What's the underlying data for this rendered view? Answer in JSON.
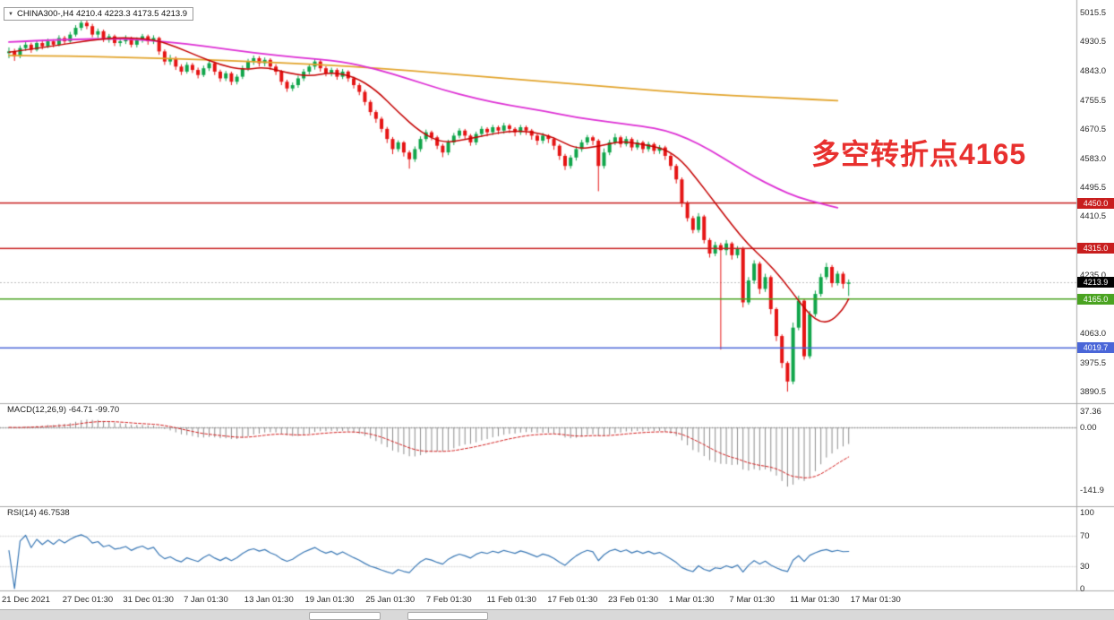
{
  "symbol_header": {
    "dropdown_icon": "▼",
    "text": "CHINA300-,H4 4210.4 4223.3 4173.5 4213.9"
  },
  "annotation": {
    "text": "多空转折点4165",
    "color": "#e8302e"
  },
  "chart_data": {
    "type": "candlestick",
    "title": "CHINA300-,H4",
    "symbol": "CHINA300-",
    "timeframe": "H4",
    "ohlc_display": {
      "open": "4210.4",
      "high": "4223.3",
      "low": "4173.5",
      "close": "4213.9"
    },
    "colors": {
      "up": "#10a54a",
      "down": "#e51414",
      "ma_fast": "#c40000",
      "ma_mid": "#dd2fd4",
      "ma_slow": "#e2a42c",
      "macd_histogram": "#8c8c8c",
      "macd_signal": "#d22020",
      "rsi_line": "#3a78b5"
    },
    "y_axis": {
      "ticks": [
        "5015.5",
        "4930.5",
        "4843.0",
        "4755.5",
        "4670.5",
        "4583.0",
        "4495.5",
        "4410.5",
        "4323.0",
        "4235.0",
        "4148.0",
        "4063.0",
        "3975.5",
        "3890.5"
      ]
    },
    "x_labels": [
      "21 Dec 2021",
      "27 Dec 01:30",
      "31 Dec 01:30",
      "7 Jan 01:30",
      "13 Jan 01:30",
      "19 Jan 01:30",
      "25 Jan 01:30",
      "7 Feb 01:30",
      "11 Feb 01:30",
      "17 Feb 01:30",
      "23 Feb 01:30",
      "1 Mar 01:30",
      "7 Mar 01:30",
      "11 Mar 01:30",
      "17 Mar 01:30"
    ],
    "levels": [
      {
        "label": "4450.0",
        "value": 4450.0,
        "color": "#c81e1e",
        "style": "solid"
      },
      {
        "label": "4315.0",
        "value": 4315.0,
        "color": "#c81e1e",
        "style": "solid"
      },
      {
        "label": "4213.9",
        "value": 4213.9,
        "color": "#000000",
        "style": "current"
      },
      {
        "label": "4165.0",
        "value": 4165.0,
        "color": "#4aa321",
        "style": "solid"
      },
      {
        "label": "4019.7",
        "value": 4019.7,
        "color": "#4a66d8",
        "style": "solid"
      }
    ],
    "candles": [
      [
        4895,
        4912,
        4880,
        4900
      ],
      [
        4900,
        4908,
        4872,
        4885
      ],
      [
        4885,
        4918,
        4880,
        4910
      ],
      [
        4910,
        4928,
        4902,
        4920
      ],
      [
        4920,
        4926,
        4896,
        4905
      ],
      [
        4905,
        4932,
        4900,
        4925
      ],
      [
        4925,
        4934,
        4906,
        4915
      ],
      [
        4915,
        4938,
        4910,
        4930
      ],
      [
        4930,
        4936,
        4912,
        4920
      ],
      [
        4920,
        4948,
        4915,
        4940
      ],
      [
        4940,
        4946,
        4922,
        4930
      ],
      [
        4930,
        4958,
        4926,
        4950
      ],
      [
        4950,
        4978,
        4944,
        4970
      ],
      [
        4970,
        4992,
        4962,
        4985
      ],
      [
        4985,
        4995,
        4966,
        4975
      ],
      [
        4975,
        4982,
        4942,
        4950
      ],
      [
        4950,
        4968,
        4940,
        4960
      ],
      [
        4960,
        4965,
        4928,
        4935
      ],
      [
        4935,
        4952,
        4926,
        4945
      ],
      [
        4945,
        4950,
        4916,
        4925
      ],
      [
        4925,
        4940,
        4915,
        4930
      ],
      [
        4930,
        4948,
        4922,
        4940
      ],
      [
        4940,
        4944,
        4912,
        4920
      ],
      [
        4920,
        4942,
        4912,
        4935
      ],
      [
        4935,
        4952,
        4926,
        4945
      ],
      [
        4945,
        4950,
        4920,
        4930
      ],
      [
        4930,
        4948,
        4922,
        4940
      ],
      [
        4940,
        4944,
        4890,
        4900
      ],
      [
        4900,
        4906,
        4860,
        4870
      ],
      [
        4870,
        4890,
        4860,
        4880
      ],
      [
        4880,
        4885,
        4845,
        4855
      ],
      [
        4855,
        4862,
        4830,
        4840
      ],
      [
        4840,
        4868,
        4834,
        4860
      ],
      [
        4860,
        4866,
        4836,
        4845
      ],
      [
        4845,
        4852,
        4820,
        4830
      ],
      [
        4830,
        4858,
        4824,
        4850
      ],
      [
        4850,
        4872,
        4842,
        4865
      ],
      [
        4865,
        4870,
        4830,
        4840
      ],
      [
        4840,
        4846,
        4810,
        4820
      ],
      [
        4820,
        4842,
        4812,
        4835
      ],
      [
        4835,
        4840,
        4800,
        4810
      ],
      [
        4810,
        4832,
        4802,
        4825
      ],
      [
        4825,
        4858,
        4818,
        4850
      ],
      [
        4850,
        4878,
        4842,
        4870
      ],
      [
        4870,
        4888,
        4860,
        4880
      ],
      [
        4880,
        4886,
        4855,
        4865
      ],
      [
        4865,
        4882,
        4856,
        4875
      ],
      [
        4875,
        4880,
        4846,
        4855
      ],
      [
        4855,
        4862,
        4830,
        4840
      ],
      [
        4840,
        4845,
        4800,
        4810
      ],
      [
        4810,
        4816,
        4780,
        4790
      ],
      [
        4790,
        4808,
        4782,
        4800
      ],
      [
        4800,
        4828,
        4792,
        4820
      ],
      [
        4820,
        4848,
        4812,
        4840
      ],
      [
        4840,
        4862,
        4832,
        4855
      ],
      [
        4855,
        4878,
        4846,
        4870
      ],
      [
        4870,
        4875,
        4840,
        4850
      ],
      [
        4850,
        4856,
        4826,
        4835
      ],
      [
        4835,
        4852,
        4826,
        4845
      ],
      [
        4845,
        4850,
        4816,
        4825
      ],
      [
        4825,
        4848,
        4818,
        4840
      ],
      [
        4840,
        4844,
        4810,
        4820
      ],
      [
        4820,
        4825,
        4790,
        4800
      ],
      [
        4800,
        4806,
        4770,
        4780
      ],
      [
        4780,
        4786,
        4740,
        4750
      ],
      [
        4750,
        4756,
        4710,
        4720
      ],
      [
        4720,
        4726,
        4688,
        4700
      ],
      [
        4700,
        4706,
        4660,
        4670
      ],
      [
        4670,
        4676,
        4628,
        4640
      ],
      [
        4640,
        4646,
        4595,
        4610
      ],
      [
        4610,
        4636,
        4602,
        4630
      ],
      [
        4630,
        4634,
        4588,
        4600
      ],
      [
        4600,
        4606,
        4552,
        4580
      ],
      [
        4580,
        4618,
        4572,
        4610
      ],
      [
        4610,
        4648,
        4602,
        4640
      ],
      [
        4640,
        4668,
        4632,
        4660
      ],
      [
        4660,
        4665,
        4636,
        4645
      ],
      [
        4645,
        4650,
        4610,
        4620
      ],
      [
        4620,
        4626,
        4586,
        4600
      ],
      [
        4600,
        4638,
        4592,
        4630
      ],
      [
        4630,
        4658,
        4622,
        4650
      ],
      [
        4650,
        4672,
        4642,
        4665
      ],
      [
        4665,
        4670,
        4640,
        4650
      ],
      [
        4650,
        4655,
        4620,
        4630
      ],
      [
        4630,
        4662,
        4622,
        4655
      ],
      [
        4655,
        4678,
        4646,
        4670
      ],
      [
        4670,
        4675,
        4648,
        4660
      ],
      [
        4660,
        4682,
        4652,
        4675
      ],
      [
        4675,
        4680,
        4654,
        4665
      ],
      [
        4665,
        4688,
        4656,
        4680
      ],
      [
        4680,
        4685,
        4658,
        4670
      ],
      [
        4670,
        4675,
        4648,
        4660
      ],
      [
        4660,
        4682,
        4652,
        4675
      ],
      [
        4675,
        4680,
        4652,
        4665
      ],
      [
        4665,
        4670,
        4638,
        4650
      ],
      [
        4650,
        4655,
        4622,
        4635
      ],
      [
        4635,
        4658,
        4626,
        4650
      ],
      [
        4650,
        4654,
        4628,
        4640
      ],
      [
        4640,
        4645,
        4608,
        4620
      ],
      [
        4620,
        4625,
        4578,
        4590
      ],
      [
        4590,
        4596,
        4548,
        4560
      ],
      [
        4560,
        4592,
        4552,
        4585
      ],
      [
        4585,
        4618,
        4576,
        4610
      ],
      [
        4610,
        4638,
        4602,
        4630
      ],
      [
        4630,
        4652,
        4622,
        4645
      ],
      [
        4645,
        4650,
        4622,
        4635
      ],
      [
        4635,
        4640,
        4485,
        4560
      ],
      [
        4560,
        4612,
        4552,
        4600
      ],
      [
        4600,
        4638,
        4592,
        4630
      ],
      [
        4630,
        4656,
        4622,
        4645
      ],
      [
        4645,
        4650,
        4615,
        4625
      ],
      [
        4625,
        4648,
        4618,
        4640
      ],
      [
        4640,
        4645,
        4605,
        4615
      ],
      [
        4615,
        4638,
        4608,
        4630
      ],
      [
        4630,
        4635,
        4598,
        4610
      ],
      [
        4610,
        4632,
        4602,
        4625
      ],
      [
        4625,
        4630,
        4595,
        4605
      ],
      [
        4605,
        4622,
        4596,
        4615
      ],
      [
        4615,
        4620,
        4578,
        4590
      ],
      [
        4590,
        4596,
        4548,
        4560
      ],
      [
        4560,
        4566,
        4508,
        4520
      ],
      [
        4520,
        4526,
        4438,
        4450
      ],
      [
        4450,
        4456,
        4395,
        4405
      ],
      [
        4405,
        4412,
        4360,
        4370
      ],
      [
        4370,
        4420,
        4362,
        4410
      ],
      [
        4410,
        4415,
        4330,
        4340
      ],
      [
        4340,
        4346,
        4288,
        4300
      ],
      [
        4300,
        4335,
        4292,
        4325
      ],
      [
        4325,
        4332,
        4015,
        4310
      ],
      [
        4310,
        4340,
        4295,
        4330
      ],
      [
        4330,
        4335,
        4282,
        4295
      ],
      [
        4295,
        4322,
        4286,
        4315
      ],
      [
        4315,
        4320,
        4140,
        4155
      ],
      [
        4155,
        4230,
        4148,
        4220
      ],
      [
        4220,
        4280,
        4210,
        4270
      ],
      [
        4270,
        4276,
        4180,
        4195
      ],
      [
        4195,
        4240,
        4186,
        4230
      ],
      [
        4230,
        4235,
        4120,
        4135
      ],
      [
        4135,
        4140,
        4040,
        4055
      ],
      [
        4055,
        4060,
        3960,
        3975
      ],
      [
        3975,
        3980,
        3890,
        3920
      ],
      [
        3920,
        4095,
        3912,
        4080
      ],
      [
        4080,
        4175,
        4072,
        4160
      ],
      [
        4160,
        4165,
        3985,
        3995
      ],
      [
        3995,
        4130,
        3988,
        4120
      ],
      [
        4120,
        4190,
        4112,
        4180
      ],
      [
        4180,
        4240,
        4172,
        4230
      ],
      [
        4230,
        4272,
        4222,
        4260
      ],
      [
        4260,
        4266,
        4200,
        4212
      ],
      [
        4212,
        4248,
        4205,
        4240
      ],
      [
        4240,
        4246,
        4196,
        4210
      ],
      [
        4210,
        4223,
        4174,
        4214
      ]
    ],
    "moving_averages": [
      {
        "name": "ma-fast-red",
        "points": [
          [
            0,
            4898
          ],
          [
            8,
            4916
          ],
          [
            14,
            4932
          ],
          [
            20,
            4942
          ],
          [
            26,
            4936
          ],
          [
            30,
            4914
          ],
          [
            34,
            4886
          ],
          [
            38,
            4860
          ],
          [
            42,
            4845
          ],
          [
            46,
            4854
          ],
          [
            50,
            4836
          ],
          [
            54,
            4826
          ],
          [
            58,
            4838
          ],
          [
            62,
            4826
          ],
          [
            66,
            4786
          ],
          [
            70,
            4720
          ],
          [
            74,
            4660
          ],
          [
            78,
            4628
          ],
          [
            82,
            4638
          ],
          [
            86,
            4652
          ],
          [
            90,
            4664
          ],
          [
            94,
            4662
          ],
          [
            98,
            4645
          ],
          [
            102,
            4610
          ],
          [
            106,
            4618
          ],
          [
            110,
            4634
          ],
          [
            114,
            4624
          ],
          [
            118,
            4610
          ],
          [
            121,
            4576
          ],
          [
            124,
            4515
          ],
          [
            127,
            4450
          ],
          [
            130,
            4385
          ],
          [
            133,
            4325
          ],
          [
            136,
            4280
          ],
          [
            139,
            4225
          ],
          [
            142,
            4160
          ],
          [
            144,
            4118
          ],
          [
            146,
            4095
          ],
          [
            148,
            4100
          ],
          [
            150,
            4135
          ],
          [
            151,
            4165
          ]
        ]
      },
      {
        "name": "ma-mid-magenta",
        "points": [
          [
            0,
            4928
          ],
          [
            10,
            4936
          ],
          [
            20,
            4938
          ],
          [
            28,
            4930
          ],
          [
            36,
            4914
          ],
          [
            44,
            4896
          ],
          [
            52,
            4882
          ],
          [
            60,
            4870
          ],
          [
            66,
            4848
          ],
          [
            72,
            4818
          ],
          [
            78,
            4786
          ],
          [
            84,
            4760
          ],
          [
            90,
            4740
          ],
          [
            96,
            4724
          ],
          [
            102,
            4704
          ],
          [
            108,
            4690
          ],
          [
            114,
            4678
          ],
          [
            118,
            4666
          ],
          [
            122,
            4642
          ],
          [
            126,
            4608
          ],
          [
            130,
            4568
          ],
          [
            134,
            4528
          ],
          [
            138,
            4494
          ],
          [
            142,
            4466
          ],
          [
            146,
            4448
          ],
          [
            149,
            4436
          ]
        ]
      },
      {
        "name": "ma-slow-orange",
        "points": [
          [
            0,
            4888
          ],
          [
            12,
            4886
          ],
          [
            24,
            4881
          ],
          [
            36,
            4875
          ],
          [
            48,
            4867
          ],
          [
            60,
            4857
          ],
          [
            72,
            4843
          ],
          [
            84,
            4827
          ],
          [
            96,
            4811
          ],
          [
            108,
            4795
          ],
          [
            120,
            4779
          ],
          [
            130,
            4769
          ],
          [
            140,
            4761
          ],
          [
            149,
            4754
          ]
        ]
      }
    ],
    "indicators": [
      {
        "name": "MACD",
        "label": "MACD(12,26,9)",
        "values": "-64.71 -99.70",
        "y_ticks": [
          "37.36",
          "0.00",
          "-141.9"
        ],
        "params": {
          "fast": 12,
          "slow": 26,
          "signal": 9
        }
      },
      {
        "name": "RSI",
        "label": "RSI(14)",
        "values": "46.7538",
        "y_ticks": [
          "100",
          "70",
          "30",
          "0"
        ],
        "period": 14
      }
    ]
  }
}
